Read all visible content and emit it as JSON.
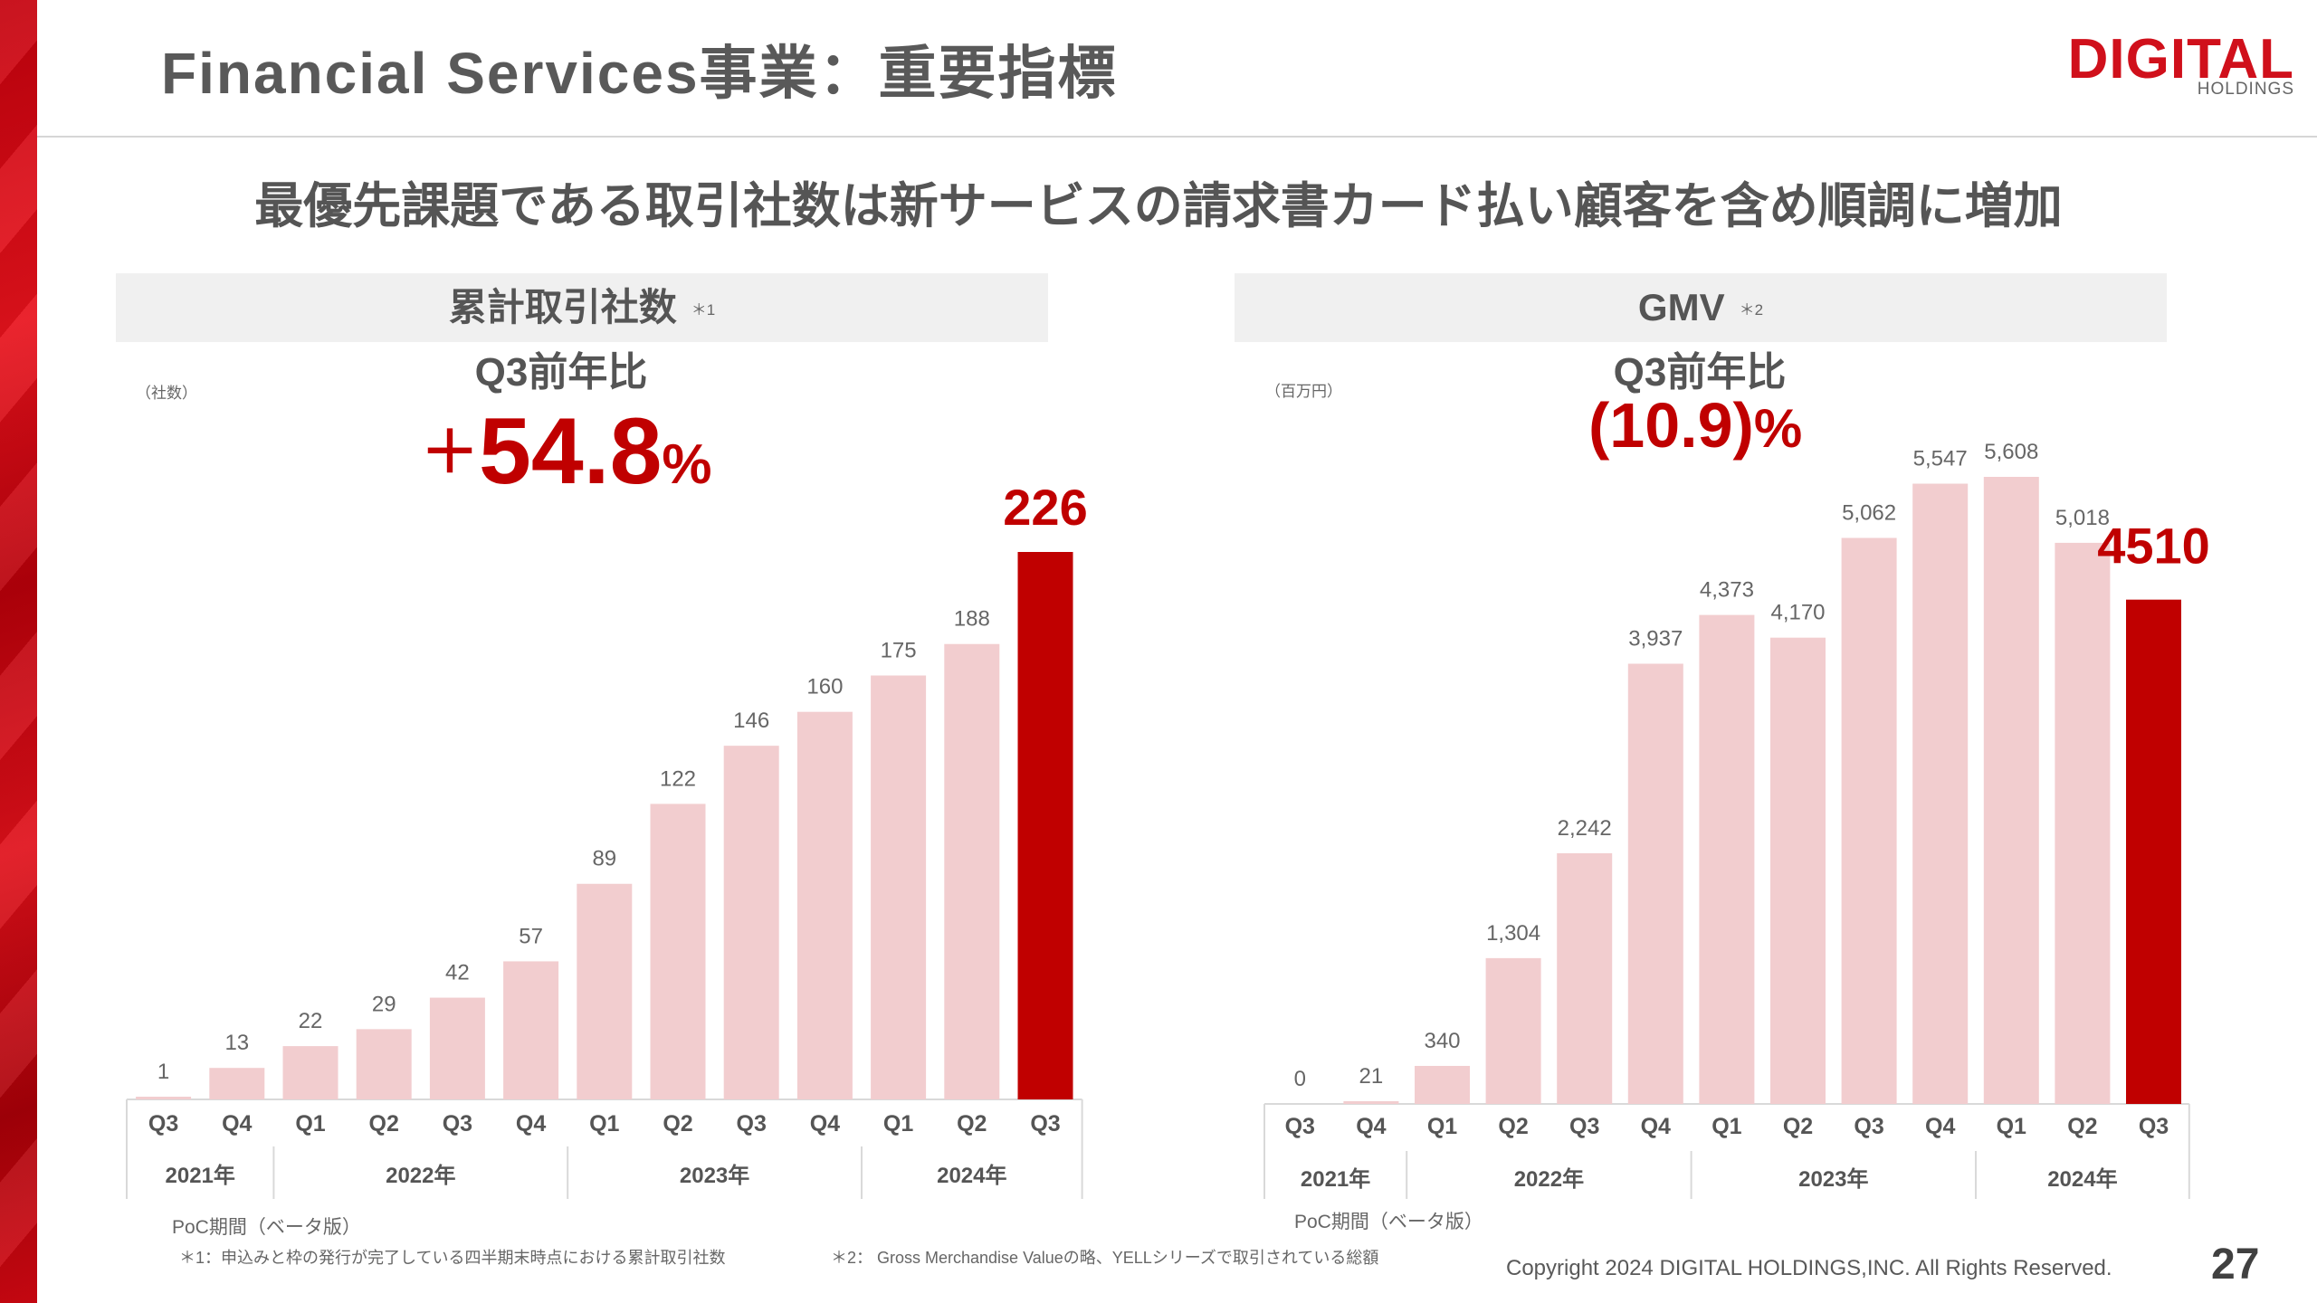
{
  "slide": {
    "title": "Financial Services事業：重要指標",
    "headline": "最優先課題である取引社数は新サービスの請求書カード払い顧客を含め順調に増加",
    "page_number": "27",
    "copyright": "Copyright 2024 DIGITAL HOLDINGS,INC. All Rights Reserved.",
    "logo": {
      "word": "DIGITAL",
      "sub": "HOLDINGS"
    },
    "colors": {
      "accent": "#c00000",
      "bar": "#f2cdcf",
      "brand": "#d0101b"
    }
  },
  "footnotes": {
    "note1": "＊1：申込みと枠の発行が完了している四半期末時点における累計取引社数",
    "note2": "＊2： Gross Merchandise Valueの略、YELLシリーズで取引されている総額"
  },
  "panels": {
    "left": {
      "heading": "累計取引社数",
      "heading_mark": "＊1",
      "unit": "（社数）",
      "yoy_label": "Q3前年比",
      "yoy_sign": "＋",
      "yoy_value": "54.8",
      "yoy_pct": "%",
      "poc": "PoC期間（ベータ版）"
    },
    "right": {
      "heading": "GMV",
      "heading_mark": "＊2",
      "unit": "（百万円）",
      "yoy_label": "Q3前年比",
      "yoy_value": "(10.9)",
      "yoy_pct": "%",
      "poc": "PoC期間（ベータ版）"
    }
  },
  "chart_data": [
    {
      "type": "bar",
      "title": "累計取引社数",
      "categories": [
        "Q3",
        "Q4",
        "Q1",
        "Q2",
        "Q3",
        "Q4",
        "Q1",
        "Q2",
        "Q3",
        "Q4",
        "Q1",
        "Q2",
        "Q3"
      ],
      "values": [
        1,
        13,
        22,
        29,
        42,
        57,
        89,
        122,
        146,
        160,
        175,
        188,
        226
      ],
      "labels": [
        "1",
        "13",
        "22",
        "29",
        "42",
        "57",
        "89",
        "122",
        "146",
        "160",
        "175",
        "188",
        "226"
      ],
      "highlight_index": 12,
      "years": [
        {
          "label": "2021年",
          "start": 0,
          "count": 2
        },
        {
          "label": "2022年",
          "start": 2,
          "count": 4
        },
        {
          "label": "2023年",
          "start": 6,
          "count": 4
        },
        {
          "label": "2024年",
          "start": 10,
          "count": 3
        }
      ],
      "ylim": [
        0,
        245
      ]
    },
    {
      "type": "bar",
      "title": "GMV",
      "categories": [
        "Q3",
        "Q4",
        "Q1",
        "Q2",
        "Q3",
        "Q4",
        "Q1",
        "Q2",
        "Q3",
        "Q4",
        "Q1",
        "Q2",
        "Q3"
      ],
      "values": [
        0,
        21,
        340,
        1304,
        2242,
        3937,
        4373,
        4170,
        5062,
        5547,
        5608,
        5018,
        4510
      ],
      "labels": [
        "0",
        "21",
        "340",
        "1,304",
        "2,242",
        "3,937",
        "4,373",
        "4,170",
        "5,062",
        "5,547",
        "5,608",
        "5,018",
        "4510"
      ],
      "highlight_index": 12,
      "years": [
        {
          "label": "2021年",
          "start": 0,
          "count": 2
        },
        {
          "label": "2022年",
          "start": 2,
          "count": 4
        },
        {
          "label": "2023年",
          "start": 6,
          "count": 4
        },
        {
          "label": "2024年",
          "start": 10,
          "count": 3
        }
      ],
      "ylim": [
        0,
        5700
      ]
    }
  ]
}
